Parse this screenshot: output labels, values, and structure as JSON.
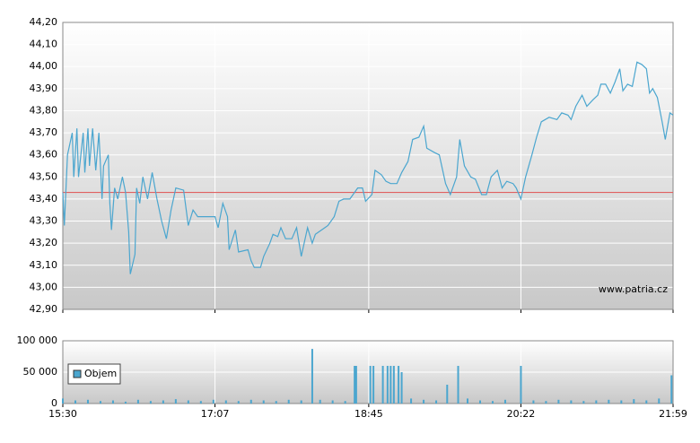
{
  "chart_data": [
    {
      "type": "line",
      "color": "#4ba6cf",
      "x": [
        "15:30",
        "15:31",
        "15:33",
        "15:36",
        "15:37",
        "15:39",
        "15:40",
        "15:43",
        "15:44",
        "15:46",
        "15:47",
        "15:49",
        "15:51",
        "15:53",
        "15:55",
        "15:56",
        "15:59",
        "16:00",
        "16:01",
        "16:03",
        "16:05",
        "16:08",
        "16:10",
        "16:12",
        "16:13",
        "16:16",
        "16:17",
        "16:19",
        "16:21",
        "16:24",
        "16:27",
        "16:30",
        "16:33",
        "16:36",
        "16:39",
        "16:42",
        "16:47",
        "16:50",
        "16:53",
        "16:56",
        "17:07",
        "17:09",
        "17:12",
        "17:15",
        "17:16",
        "17:20",
        "17:22",
        "17:28",
        "17:30",
        "17:32",
        "17:36",
        "17:38",
        "17:42",
        "17:44",
        "17:47",
        "17:49",
        "17:52",
        "17:56",
        "17:59",
        "18:02",
        "18:06",
        "18:09",
        "18:11",
        "18:15",
        "18:19",
        "18:23",
        "18:26",
        "18:29",
        "18:33",
        "18:38",
        "18:41",
        "18:43",
        "18:47",
        "18:49",
        "18:53",
        "18:56",
        "18:59",
        "19:03",
        "19:06",
        "19:10",
        "19:13",
        "19:17",
        "19:20",
        "19:22",
        "19:27",
        "19:30",
        "19:34",
        "19:37",
        "19:41",
        "19:43",
        "19:46",
        "19:50",
        "19:53",
        "19:57",
        "20:00",
        "20:03",
        "20:07",
        "20:10",
        "20:13",
        "20:17",
        "20:19",
        "20:22",
        "20:25",
        "20:29",
        "20:32",
        "20:35",
        "20:40",
        "20:45",
        "20:48",
        "20:52",
        "20:54",
        "20:57",
        "21:01",
        "21:04",
        "21:08",
        "21:11",
        "21:13",
        "21:16",
        "21:19",
        "21:22",
        "21:25",
        "21:27",
        "21:30",
        "21:33",
        "21:36",
        "21:39",
        "21:42",
        "21:44",
        "21:46",
        "21:49",
        "21:52",
        "21:54",
        "21:57",
        "21:59"
      ],
      "values": [
        43.43,
        43.28,
        43.6,
        43.7,
        43.5,
        43.72,
        43.5,
        43.7,
        43.52,
        43.72,
        43.55,
        43.72,
        43.53,
        43.7,
        43.4,
        43.55,
        43.6,
        43.38,
        43.26,
        43.45,
        43.4,
        43.5,
        43.43,
        43.25,
        43.06,
        43.15,
        43.45,
        43.38,
        43.5,
        43.4,
        43.52,
        43.4,
        43.3,
        43.22,
        43.35,
        43.45,
        43.44,
        43.28,
        43.35,
        43.32,
        43.32,
        43.27,
        43.38,
        43.32,
        43.17,
        43.26,
        43.16,
        43.17,
        43.12,
        43.09,
        43.09,
        43.14,
        43.2,
        43.24,
        43.23,
        43.27,
        43.22,
        43.22,
        43.27,
        43.14,
        43.27,
        43.2,
        43.24,
        43.26,
        43.28,
        43.32,
        43.39,
        43.4,
        43.4,
        43.45,
        43.45,
        43.39,
        43.42,
        43.53,
        43.51,
        43.48,
        43.47,
        43.47,
        43.52,
        43.57,
        43.67,
        43.68,
        43.73,
        43.63,
        43.61,
        43.6,
        43.47,
        43.42,
        43.5,
        43.67,
        43.55,
        43.5,
        43.49,
        43.42,
        43.42,
        43.5,
        43.53,
        43.45,
        43.48,
        43.47,
        43.45,
        43.4,
        43.5,
        43.6,
        43.68,
        43.75,
        43.77,
        43.76,
        43.79,
        43.78,
        43.76,
        43.82,
        43.87,
        43.82,
        43.85,
        43.87,
        43.92,
        43.92,
        43.88,
        43.93,
        43.99,
        43.89,
        43.92,
        43.91,
        44.02,
        44.01,
        43.99,
        43.88,
        43.9,
        43.86,
        43.75,
        43.67,
        43.79,
        43.78
      ],
      "reference_line": 43.43,
      "reference_color": "#e06060",
      "xlim": [
        "15:30",
        "21:59"
      ],
      "ylim": [
        42.9,
        44.2
      ],
      "yticks": [
        {
          "value": 42.9,
          "label": "42,90"
        },
        {
          "value": 43.0,
          "label": "43,00"
        },
        {
          "value": 43.1,
          "label": "43,10"
        },
        {
          "value": 43.2,
          "label": "43,20"
        },
        {
          "value": 43.3,
          "label": "43,30"
        },
        {
          "value": 43.4,
          "label": "43,40"
        },
        {
          "value": 43.5,
          "label": "43,50"
        },
        {
          "value": 43.6,
          "label": "43,60"
        },
        {
          "value": 43.7,
          "label": "43,70"
        },
        {
          "value": 43.8,
          "label": "43,80"
        },
        {
          "value": 43.9,
          "label": "43,90"
        },
        {
          "value": 44.0,
          "label": "44,00"
        },
        {
          "value": 44.1,
          "label": "44,10"
        },
        {
          "value": 44.2,
          "label": "44,20"
        }
      ],
      "grid": true,
      "watermark": "www.patria.cz"
    },
    {
      "type": "bar",
      "x": [
        "15:30",
        "15:38",
        "15:46",
        "15:54",
        "16:02",
        "16:10",
        "16:18",
        "16:26",
        "16:34",
        "16:42",
        "16:50",
        "16:58",
        "17:06",
        "17:14",
        "17:22",
        "17:30",
        "17:38",
        "17:46",
        "17:54",
        "18:02",
        "18:09",
        "18:14",
        "18:22",
        "18:30",
        "18:36",
        "18:37",
        "18:46",
        "18:48",
        "18:54",
        "18:57",
        "18:59",
        "19:01",
        "19:04",
        "19:06",
        "19:12",
        "19:20",
        "19:28",
        "19:35",
        "19:42",
        "19:48",
        "19:56",
        "20:04",
        "20:12",
        "20:22",
        "20:30",
        "20:38",
        "20:46",
        "20:54",
        "21:02",
        "21:10",
        "21:18",
        "21:26",
        "21:34",
        "21:42",
        "21:50",
        "21:58"
      ],
      "series": [
        {
          "name": "Objem",
          "color": "#4ba6cf",
          "values": [
            8000,
            5000,
            6000,
            4000,
            5000,
            3000,
            6000,
            4000,
            5000,
            7000,
            5000,
            4000,
            6000,
            5000,
            4000,
            6000,
            5000,
            4000,
            6000,
            5000,
            87000,
            6000,
            5000,
            4000,
            60000,
            60000,
            60000,
            60000,
            60000,
            60000,
            60000,
            60000,
            60000,
            50000,
            8000,
            6000,
            5000,
            30000,
            60000,
            8000,
            5000,
            4000,
            6000,
            60000,
            5000,
            4000,
            6000,
            5000,
            4000,
            5000,
            6000,
            5000,
            7000,
            5000,
            8000,
            45000
          ]
        }
      ],
      "xlim": [
        "15:30",
        "21:59"
      ],
      "xticks": [
        "15:30",
        "17:07",
        "18:45",
        "20:22",
        "21:59"
      ],
      "ylim": [
        0,
        100000
      ],
      "yticks": [
        0,
        {
          "value": 50000,
          "label": "50 000"
        },
        {
          "value": 100000,
          "label": "100 000"
        }
      ],
      "grid": true,
      "legend": "upper-left"
    }
  ]
}
